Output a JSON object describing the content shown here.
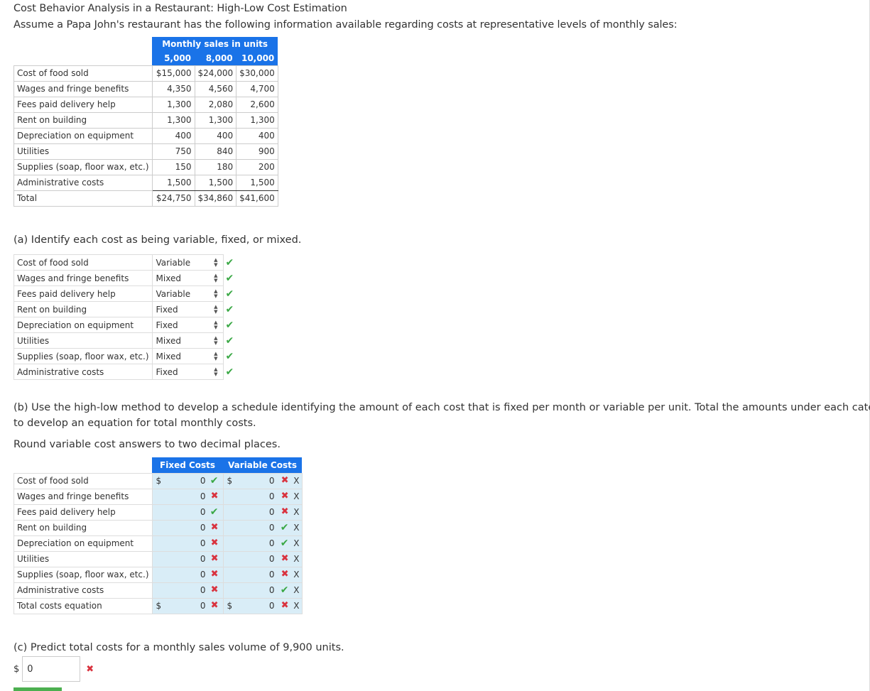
{
  "title": "Cost Behavior Analysis in a Restaurant: High-Low Cost Estimation",
  "intro": "Assume a Papa John's restaurant has the following information available regarding costs at representative levels of monthly sales:",
  "data_table": {
    "header": "Monthly sales in units",
    "units": [
      "5,000",
      "8,000",
      "10,000"
    ],
    "rows": [
      {
        "label": "Cost of food sold",
        "v": [
          "$15,000",
          "$24,000",
          "$30,000"
        ]
      },
      {
        "label": "Wages and fringe benefits",
        "v": [
          "4,350",
          "4,560",
          "4,700"
        ]
      },
      {
        "label": "Fees paid delivery help",
        "v": [
          "1,300",
          "2,080",
          "2,600"
        ]
      },
      {
        "label": "Rent on building",
        "v": [
          "1,300",
          "1,300",
          "1,300"
        ]
      },
      {
        "label": "Depreciation on equipment",
        "v": [
          "400",
          "400",
          "400"
        ]
      },
      {
        "label": "Utilities",
        "v": [
          "750",
          "840",
          "900"
        ]
      },
      {
        "label": "Supplies (soap, floor wax, etc.)",
        "v": [
          "150",
          "180",
          "200"
        ]
      },
      {
        "label": "Administrative costs",
        "v": [
          "1,500",
          "1,500",
          "1,500"
        ]
      },
      {
        "label": "Total",
        "v": [
          "$24,750",
          "$34,860",
          "$41,600"
        ]
      }
    ]
  },
  "part_a": {
    "question": "(a) Identify each cost as being variable, fixed, or mixed.",
    "rows": [
      {
        "label": "Cost of food sold",
        "selected": "Variable",
        "status": "correct"
      },
      {
        "label": "Wages and fringe benefits",
        "selected": "Mixed",
        "status": "correct"
      },
      {
        "label": "Fees paid delivery help",
        "selected": "Variable",
        "status": "correct"
      },
      {
        "label": "Rent on building",
        "selected": "Fixed",
        "status": "correct"
      },
      {
        "label": "Depreciation on equipment",
        "selected": "Fixed",
        "status": "correct"
      },
      {
        "label": "Utilities",
        "selected": "Mixed",
        "status": "correct"
      },
      {
        "label": "Supplies (soap, floor wax, etc.)",
        "selected": "Mixed",
        "status": "correct"
      },
      {
        "label": "Administrative costs",
        "selected": "Fixed",
        "status": "correct"
      }
    ]
  },
  "part_b": {
    "question_line1": "(b) Use the high-low method to develop a schedule identifying the amount of each cost that is fixed per month or variable per unit. Total the amounts under each category",
    "question_line2": "to develop an equation for total monthly costs.",
    "instruction": "Round variable cost answers to two decimal places.",
    "col_fixed": "Fixed Costs",
    "col_variable": "Variable Costs",
    "currency": "$",
    "suffix": "X",
    "rows": [
      {
        "label": "Cost of food sold",
        "fixed": "0",
        "fixed_status": "correct",
        "variable": "0",
        "variable_status": "incorrect",
        "show_currency": true
      },
      {
        "label": "Wages and fringe benefits",
        "fixed": "0",
        "fixed_status": "incorrect",
        "variable": "0",
        "variable_status": "incorrect",
        "show_currency": false
      },
      {
        "label": "Fees paid delivery help",
        "fixed": "0",
        "fixed_status": "correct",
        "variable": "0",
        "variable_status": "incorrect",
        "show_currency": false
      },
      {
        "label": "Rent on building",
        "fixed": "0",
        "fixed_status": "incorrect",
        "variable": "0",
        "variable_status": "correct",
        "show_currency": false
      },
      {
        "label": "Depreciation on equipment",
        "fixed": "0",
        "fixed_status": "incorrect",
        "variable": "0",
        "variable_status": "correct",
        "show_currency": false
      },
      {
        "label": "Utilities",
        "fixed": "0",
        "fixed_status": "incorrect",
        "variable": "0",
        "variable_status": "incorrect",
        "show_currency": false
      },
      {
        "label": "Supplies (soap, floor wax, etc.)",
        "fixed": "0",
        "fixed_status": "incorrect",
        "variable": "0",
        "variable_status": "incorrect",
        "show_currency": false
      },
      {
        "label": "Administrative costs",
        "fixed": "0",
        "fixed_status": "incorrect",
        "variable": "0",
        "variable_status": "correct",
        "show_currency": false
      },
      {
        "label": "Total costs equation",
        "fixed": "0",
        "fixed_status": "incorrect",
        "variable": "0",
        "variable_status": "incorrect",
        "show_currency": true
      }
    ]
  },
  "part_c": {
    "question": "(c) Predict total costs for a monthly sales volume of 9,900 units.",
    "currency": "$",
    "value": "0",
    "status": "incorrect"
  },
  "colors": {
    "header_blue": "#1a73e8",
    "input_bg": "#d9edf7",
    "correct": "#3aa845",
    "incorrect": "#d9333f"
  },
  "icons": {
    "correct": "check-icon",
    "incorrect": "cross-icon",
    "select": "select-arrows-icon"
  }
}
